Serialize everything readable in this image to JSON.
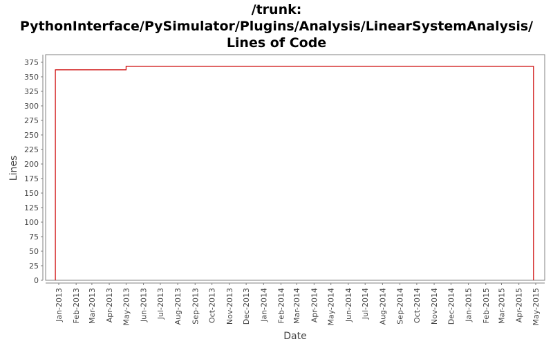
{
  "chart_data": {
    "type": "line",
    "step": true,
    "title_lines": [
      "/trunk:",
      "PythonInterface/PySimulator/Plugins/Analysis/LinearSystemAnalysis/",
      "Lines of Code"
    ],
    "title": "/trunk: PythonInterface/PySimulator/Plugins/Analysis/LinearSystemAnalysis/ Lines of Code",
    "xlabel": "Date",
    "ylabel": "Lines",
    "ylim": [
      0,
      375
    ],
    "yticks": [
      0,
      25,
      50,
      75,
      100,
      125,
      150,
      175,
      200,
      225,
      250,
      275,
      300,
      325,
      350,
      375
    ],
    "xticks": [
      "Jan-2013",
      "Feb-2013",
      "Mar-2013",
      "Apr-2013",
      "May-2013",
      "Jun-2013",
      "Jul-2013",
      "Aug-2013",
      "Sep-2013",
      "Oct-2013",
      "Nov-2013",
      "Dec-2013",
      "Jan-2014",
      "Feb-2014",
      "Mar-2014",
      "Apr-2014",
      "May-2014",
      "Jun-2014",
      "Jul-2014",
      "Aug-2014",
      "Sep-2014",
      "Oct-2014",
      "Nov-2014",
      "Dec-2014",
      "Jan-2015",
      "Feb-2015",
      "Mar-2015",
      "Apr-2015",
      "May-2015"
    ],
    "grid": false,
    "legend": null,
    "series": [
      {
        "name": "Lines of Code",
        "color": "#cc0000",
        "points": [
          {
            "x": "2012-12-26",
            "y": 0
          },
          {
            "x": "2012-12-26",
            "y": 362
          },
          {
            "x": "2013-05-01",
            "y": 362
          },
          {
            "x": "2013-05-01",
            "y": 368
          },
          {
            "x": "2015-04-27",
            "y": 368
          },
          {
            "x": "2015-04-27",
            "y": 0
          }
        ]
      }
    ]
  },
  "colors": {
    "line": "#cc0000",
    "axis": "#808080",
    "text": "#444444"
  }
}
